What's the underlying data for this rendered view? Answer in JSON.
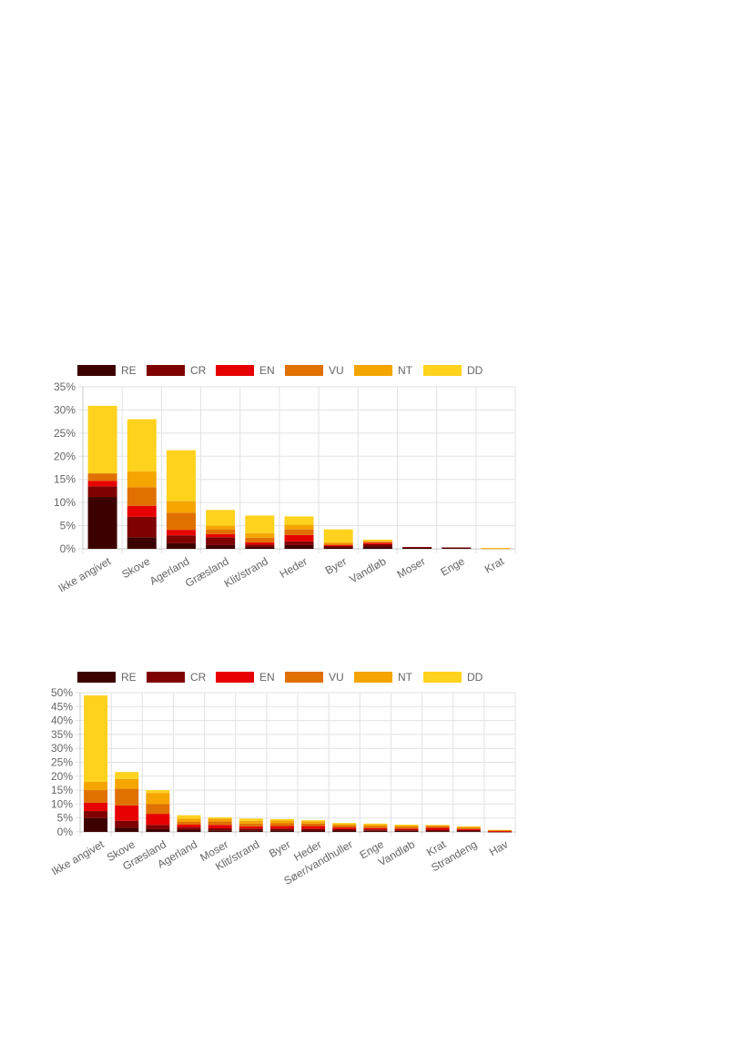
{
  "legend_labels": [
    "RE",
    "CR",
    "EN",
    "VU",
    "NT",
    "DD"
  ],
  "colors": {
    "RE": "#3d0000",
    "CR": "#7f0000",
    "EN": "#e60000",
    "VU": "#e07000",
    "NT": "#f5a500",
    "DD": "#ffd21e"
  },
  "chart_data": [
    {
      "type": "bar",
      "stacked": true,
      "categories": [
        "Ikke angivet",
        "Skove",
        "Agerland",
        "Græsland",
        "Klit/strand",
        "Heder",
        "Byer",
        "Vandløb",
        "Moser",
        "Enge",
        "Krat"
      ],
      "ylim": [
        0,
        35
      ],
      "yticks": [
        "0%",
        "5%",
        "10%",
        "15%",
        "20%",
        "25%",
        "30%",
        "35%"
      ],
      "grid": true,
      "legend": "top-left",
      "series": [
        {
          "name": "RE",
          "values": [
            11.2,
            2.5,
            1.2,
            0.8,
            0.4,
            0.8,
            0.3,
            0.5,
            0.2,
            0.2,
            0.0
          ]
        },
        {
          "name": "CR",
          "values": [
            2.3,
            4.4,
            1.7,
            1.7,
            0.5,
            0.8,
            0.3,
            0.5,
            0.2,
            0.1,
            0.0
          ]
        },
        {
          "name": "EN",
          "values": [
            1.2,
            2.4,
            1.2,
            0.7,
            0.5,
            1.4,
            0.2,
            0.3,
            0.0,
            0.0,
            0.0
          ]
        },
        {
          "name": "VU",
          "values": [
            1.6,
            4.0,
            3.7,
            1.0,
            1.0,
            1.2,
            0.3,
            0.2,
            0.0,
            0.0,
            0.1
          ]
        },
        {
          "name": "NT",
          "values": [
            0.0,
            3.4,
            2.5,
            0.8,
            1.0,
            1.0,
            0.3,
            0.2,
            0.0,
            0.0,
            0.0
          ]
        },
        {
          "name": "DD",
          "values": [
            14.6,
            11.3,
            11.0,
            3.4,
            3.8,
            1.8,
            2.8,
            0.3,
            0.0,
            0.0,
            0.1
          ]
        }
      ]
    },
    {
      "type": "bar",
      "stacked": true,
      "categories": [
        "Ikke angivet",
        "Skove",
        "Græsland",
        "Agerland",
        "Moser",
        "Klit/strand",
        "Byer",
        "Heder",
        "Søer/vandhuller",
        "Enge",
        "Vandløb",
        "Krat",
        "Strandeng",
        "Hav"
      ],
      "ylim": [
        0,
        50
      ],
      "yticks": [
        "0%",
        "5%",
        "10%",
        "15%",
        "20%",
        "25%",
        "30%",
        "35%",
        "40%",
        "45%",
        "50%"
      ],
      "grid": true,
      "legend": "top-left",
      "series": [
        {
          "name": "RE",
          "values": [
            5.0,
            1.5,
            1.0,
            0.8,
            0.6,
            0.6,
            0.6,
            0.5,
            0.5,
            0.4,
            0.4,
            0.3,
            0.3,
            0.1
          ]
        },
        {
          "name": "CR",
          "values": [
            2.5,
            2.5,
            1.5,
            0.8,
            0.7,
            0.6,
            0.6,
            0.6,
            0.5,
            0.5,
            0.4,
            0.5,
            0.4,
            0.1
          ]
        },
        {
          "name": "EN",
          "values": [
            3.0,
            5.5,
            4.0,
            1.0,
            1.2,
            0.8,
            0.9,
            1.0,
            0.6,
            0.5,
            0.4,
            0.7,
            0.3,
            0.1
          ]
        },
        {
          "name": "VU",
          "values": [
            4.5,
            6.0,
            3.5,
            1.0,
            1.3,
            1.0,
            1.0,
            0.9,
            0.7,
            0.7,
            0.6,
            0.6,
            0.5,
            0.3
          ]
        },
        {
          "name": "NT",
          "values": [
            3.0,
            3.5,
            4.0,
            1.2,
            1.0,
            1.0,
            1.0,
            0.8,
            0.6,
            0.6,
            0.5,
            0.3,
            0.4,
            0.1
          ]
        },
        {
          "name": "DD",
          "values": [
            31.0,
            2.5,
            1.0,
            1.2,
            0.4,
            0.8,
            0.5,
            0.4,
            0.3,
            0.3,
            0.3,
            0.1,
            0.1,
            0.0
          ]
        }
      ]
    }
  ]
}
